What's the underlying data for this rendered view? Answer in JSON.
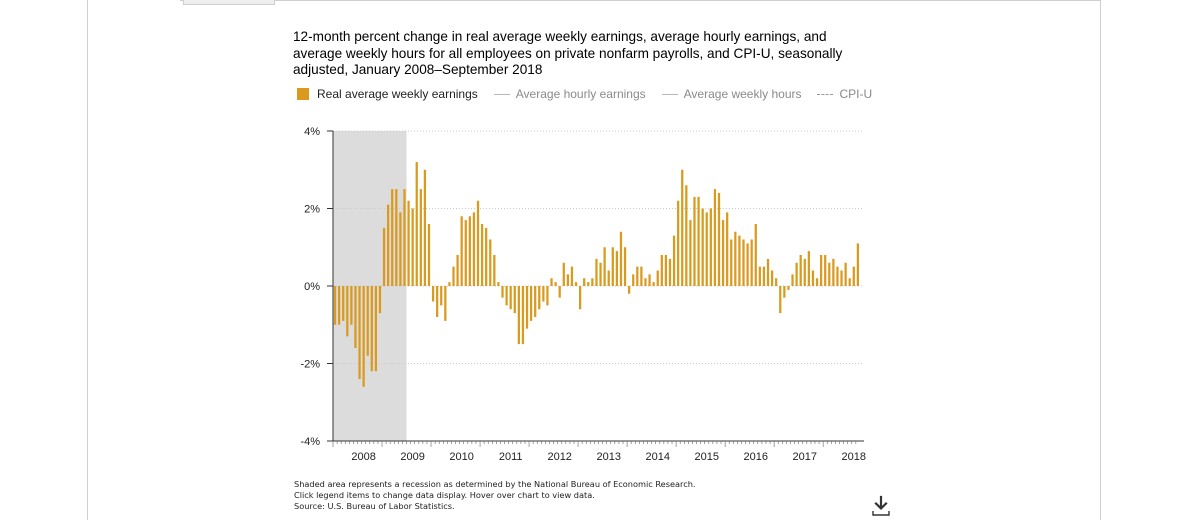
{
  "title": "12-month percent change in real average weekly earnings, average hourly earnings, and average weekly hours for all employees on private nonfarm payrolls, and CPI-U, seasonally adjusted, January 2008–September 2018",
  "legend": [
    {
      "label": "Real average weekly earnings",
      "style": "bar",
      "color": "#d99a1e",
      "active": true
    },
    {
      "label": "Average hourly earnings",
      "style": "line",
      "color": "#b8b8b8",
      "active": false
    },
    {
      "label": "Average weekly hours",
      "style": "line",
      "color": "#b8b8b8",
      "active": false
    },
    {
      "label": "CPI-U",
      "style": "dash",
      "color": "#999999",
      "active": false
    }
  ],
  "footnotes": [
    "Shaded area represents a recession as determined by the National Bureau of Economic Research.",
    "Click legend items to change data display. Hover over chart to view data.",
    "Source: U.S. Bureau of Labor Statistics."
  ],
  "icons": {
    "download": "download-icon"
  },
  "colors": {
    "bar": "#d99a1e",
    "recession": "#dcdcdc",
    "grid": "#c8c8c8"
  },
  "chart_data": {
    "type": "bar",
    "ylim": [
      -4,
      4
    ],
    "y_ticks": [
      4,
      2,
      0,
      -2,
      -4
    ],
    "y_tick_labels": [
      "4%",
      "2%",
      "0%",
      "-2%",
      "-4%"
    ],
    "x_tick_labels": [
      "2008",
      "2009",
      "2010",
      "2011",
      "2012",
      "2013",
      "2014",
      "2015",
      "2016",
      "2017",
      "2018"
    ],
    "start": "2008-01",
    "end": "2018-09",
    "recession": {
      "start": "2008-01",
      "end": "2009-06"
    },
    "grid": true,
    "legend_position": "top",
    "series": [
      {
        "name": "Real average weekly earnings",
        "values": [
          -1.0,
          -1.0,
          -0.9,
          -1.3,
          -1.0,
          -1.6,
          -2.4,
          -2.6,
          -1.8,
          -2.2,
          -2.2,
          -0.7,
          1.5,
          2.1,
          2.5,
          2.5,
          1.9,
          2.5,
          2.2,
          2.0,
          3.2,
          2.5,
          3.0,
          1.6,
          -0.4,
          -0.8,
          -0.5,
          -0.9,
          0.1,
          0.5,
          0.8,
          1.8,
          1.7,
          1.8,
          1.9,
          2.2,
          1.6,
          1.5,
          1.2,
          0.8,
          0.1,
          -0.3,
          -0.5,
          -0.6,
          -0.7,
          -1.5,
          -1.5,
          -1.1,
          -0.9,
          -0.8,
          -0.6,
          -0.4,
          -0.5,
          0.2,
          0.1,
          -0.3,
          0.6,
          0.3,
          0.5,
          0.1,
          -0.6,
          0.2,
          0.1,
          0.2,
          0.7,
          0.6,
          1.0,
          0.4,
          1.0,
          0.9,
          1.4,
          1.0,
          -0.2,
          0.3,
          0.5,
          0.5,
          0.2,
          0.3,
          0.1,
          0.4,
          0.8,
          0.8,
          0.7,
          1.3,
          2.2,
          3.0,
          2.6,
          1.7,
          2.3,
          2.3,
          2.0,
          1.9,
          2.0,
          2.5,
          2.4,
          1.7,
          1.9,
          1.2,
          1.4,
          1.3,
          1.2,
          1.1,
          1.2,
          1.6,
          0.5,
          0.5,
          0.7,
          0.4,
          0.2,
          -0.7,
          -0.3,
          -0.1,
          0.3,
          0.6,
          0.8,
          0.7,
          0.9,
          0.4,
          0.2,
          0.8,
          0.8,
          0.6,
          0.7,
          0.5,
          0.4,
          0.6,
          0.2,
          0.5,
          1.1
        ]
      }
    ]
  }
}
